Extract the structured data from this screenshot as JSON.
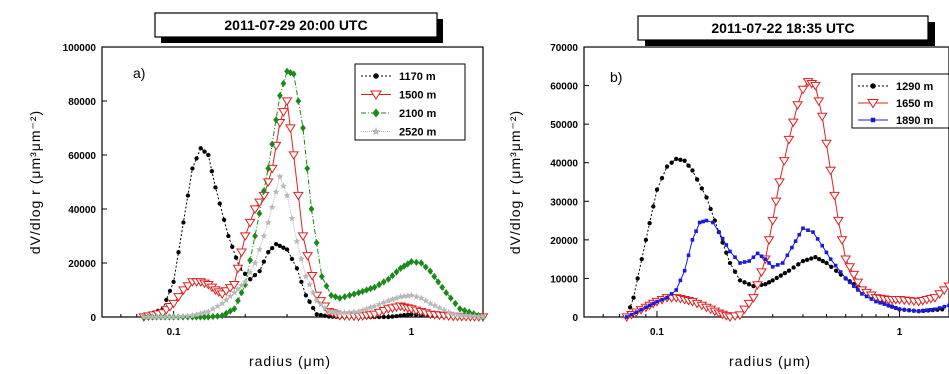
{
  "chart_data": [
    {
      "type": "line",
      "title": "2011-07-29 20:00 UTC",
      "panel_label": "a)",
      "xlabel": "radius (μm)",
      "ylabel": "dV/dlog r (μm³μm⁻²)",
      "xscale": "log",
      "xlim": [
        0.05,
        2.0
      ],
      "ylim": [
        0,
        100000
      ],
      "xticks": [
        {
          "value": 0.1,
          "label": "0.1"
        },
        {
          "value": 1,
          "label": "1"
        }
      ],
      "yticks": [
        0,
        20000,
        40000,
        60000,
        80000,
        100000
      ],
      "legend_position": "top-right",
      "series": [
        {
          "name": "1170 m",
          "color": "#000000",
          "marker": "circle",
          "dash": "2,2",
          "fill": true,
          "x": [
            0.075,
            0.09,
            0.1,
            0.11,
            0.12,
            0.13,
            0.14,
            0.15,
            0.17,
            0.19,
            0.21,
            0.23,
            0.25,
            0.27,
            0.3,
            0.33,
            0.36,
            0.4,
            0.45,
            0.5,
            0.6,
            0.7,
            0.8,
            0.9,
            1.0,
            1.2,
            1.5,
            2.0
          ],
          "y": [
            0,
            3000,
            13000,
            35000,
            55000,
            62500,
            60000,
            48000,
            30000,
            18000,
            14000,
            17000,
            24000,
            27000,
            25000,
            18000,
            8000,
            1000,
            200,
            0,
            0,
            0,
            0,
            500,
            1000,
            500,
            0,
            0
          ]
        },
        {
          "name": "1500 m",
          "color": "#e02020",
          "marker": "triangle-down",
          "dash": "",
          "fill": false,
          "x": [
            0.075,
            0.09,
            0.1,
            0.11,
            0.12,
            0.13,
            0.14,
            0.15,
            0.16,
            0.18,
            0.2,
            0.22,
            0.24,
            0.26,
            0.28,
            0.3,
            0.32,
            0.35,
            0.4,
            0.45,
            0.5,
            0.6,
            0.7,
            0.8,
            0.9,
            1.0,
            1.2,
            1.5,
            2.0
          ],
          "y": [
            0,
            1500,
            5000,
            10000,
            13000,
            13000,
            12000,
            10000,
            8500,
            12000,
            30000,
            40000,
            45000,
            55000,
            72000,
            80000,
            60000,
            30000,
            8000,
            2000,
            500,
            200,
            1000,
            3000,
            4000,
            3000,
            1000,
            200,
            0
          ]
        },
        {
          "name": "2100 m",
          "color": "#1a8a1a",
          "marker": "diamond",
          "dash": "5,2,1,2",
          "fill": true,
          "x": [
            0.075,
            0.1,
            0.12,
            0.14,
            0.16,
            0.18,
            0.2,
            0.22,
            0.25,
            0.28,
            0.3,
            0.32,
            0.35,
            0.38,
            0.42,
            0.46,
            0.5,
            0.55,
            0.6,
            0.7,
            0.8,
            0.9,
            1.0,
            1.1,
            1.2,
            1.4,
            1.6,
            2.0
          ],
          "y": [
            0,
            0,
            0,
            0,
            500,
            3000,
            12000,
            30000,
            55000,
            82000,
            91000,
            90000,
            70000,
            40000,
            15000,
            8000,
            7000,
            8000,
            9000,
            11000,
            14000,
            18000,
            20500,
            20000,
            17000,
            9000,
            3000,
            0
          ]
        },
        {
          "name": "2520 m",
          "color": "#b8b8b8",
          "marker": "star",
          "dash": "1,1",
          "fill": true,
          "x": [
            0.075,
            0.1,
            0.12,
            0.14,
            0.16,
            0.18,
            0.2,
            0.22,
            0.25,
            0.28,
            0.3,
            0.33,
            0.36,
            0.4,
            0.45,
            0.5,
            0.6,
            0.7,
            0.8,
            0.9,
            1.0,
            1.1,
            1.2,
            1.5,
            2.0
          ],
          "y": [
            0,
            0,
            500,
            2000,
            5000,
            9000,
            13000,
            20000,
            35000,
            52000,
            45000,
            28000,
            15000,
            6000,
            2000,
            1500,
            2000,
            4000,
            6000,
            7500,
            8000,
            7000,
            5000,
            1000,
            0
          ]
        }
      ]
    },
    {
      "type": "line",
      "title": "2011-07-22 18:35 UTC",
      "panel_label": "b)",
      "xlabel": "radius (μm)",
      "ylabel": "dV/dlog r (μm³μm⁻²)",
      "xscale": "log",
      "xlim": [
        0.05,
        1.6
      ],
      "ylim": [
        0,
        70000
      ],
      "xticks": [
        {
          "value": 0.1,
          "label": "0.1"
        },
        {
          "value": 1,
          "label": "1"
        }
      ],
      "yticks": [
        0,
        10000,
        20000,
        30000,
        40000,
        50000,
        60000,
        70000
      ],
      "legend_position": "top-right",
      "series": [
        {
          "name": "1290 m",
          "color": "#000000",
          "marker": "circle",
          "dash": "2,2",
          "fill": true,
          "x": [
            0.075,
            0.08,
            0.09,
            0.1,
            0.11,
            0.12,
            0.13,
            0.14,
            0.16,
            0.18,
            0.2,
            0.22,
            0.25,
            0.28,
            0.3,
            0.35,
            0.4,
            0.45,
            0.5,
            0.6,
            0.7,
            0.8,
            0.9,
            1.0,
            1.2,
            1.5
          ],
          "y": [
            0,
            5000,
            20000,
            33000,
            39000,
            41000,
            40500,
            38000,
            31000,
            22000,
            14000,
            9500,
            8000,
            8500,
            9500,
            12000,
            14500,
            15500,
            14000,
            10000,
            7000,
            5000,
            3000,
            2000,
            1500,
            2000
          ]
        },
        {
          "name": "1650 m",
          "color": "#e02020",
          "marker": "triangle-down",
          "dash": "",
          "fill": false,
          "x": [
            0.075,
            0.09,
            0.1,
            0.11,
            0.12,
            0.13,
            0.14,
            0.16,
            0.18,
            0.2,
            0.22,
            0.25,
            0.28,
            0.3,
            0.32,
            0.35,
            0.38,
            0.4,
            0.42,
            0.45,
            0.48,
            0.52,
            0.56,
            0.6,
            0.7,
            0.8,
            0.9,
            1.0,
            1.2,
            1.4,
            1.6
          ],
          "y": [
            0,
            2500,
            4000,
            5000,
            5000,
            4500,
            4000,
            2500,
            1000,
            0,
            500,
            5000,
            15000,
            25000,
            35000,
            46000,
            55000,
            59000,
            61000,
            60000,
            52000,
            38000,
            25000,
            15000,
            7000,
            5000,
            4500,
            4500,
            4000,
            5000,
            8000
          ]
        },
        {
          "name": "1890 m",
          "color": "#1a1ad8",
          "marker": "square",
          "dash": "",
          "fill": true,
          "x": [
            0.075,
            0.09,
            0.1,
            0.11,
            0.12,
            0.13,
            0.14,
            0.15,
            0.16,
            0.17,
            0.18,
            0.2,
            0.22,
            0.24,
            0.26,
            0.28,
            0.3,
            0.33,
            0.36,
            0.4,
            0.44,
            0.48,
            0.52,
            0.6,
            0.7,
            0.8,
            0.9,
            1.0,
            1.2,
            1.4,
            1.6
          ],
          "y": [
            0,
            2500,
            4000,
            5000,
            7000,
            12000,
            20000,
            24500,
            25000,
            24500,
            22000,
            17000,
            14000,
            14500,
            16500,
            15000,
            13000,
            14000,
            18000,
            23000,
            22000,
            18500,
            15000,
            10000,
            6000,
            4000,
            3000,
            2000,
            1500,
            2000,
            3000
          ]
        }
      ]
    }
  ]
}
